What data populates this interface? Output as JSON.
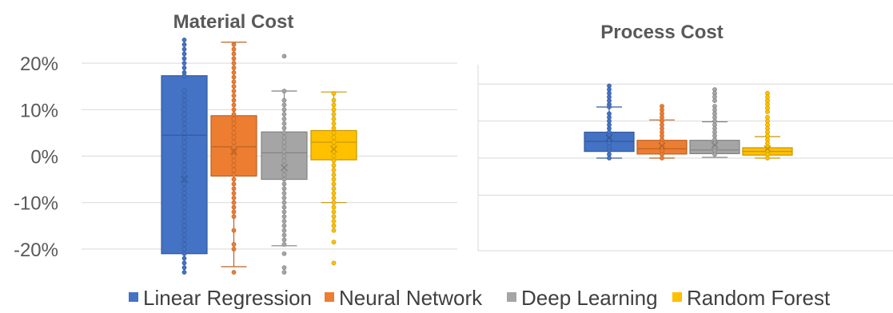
{
  "legend": {
    "placement": "bottom",
    "items": [
      {
        "label": "Linear Regression",
        "color": "#4472C4"
      },
      {
        "label": "Neural Network",
        "color": "#ED7D31"
      },
      {
        "label": "Deep Learning",
        "color": "#A5A5A5"
      },
      {
        "label": "Random Forest",
        "color": "#FFC000"
      }
    ]
  },
  "chart_data": [
    {
      "type": "box",
      "title": "Material Cost",
      "y_ticks": [
        "20%",
        "10%",
        "0%",
        "-10%",
        "-20%"
      ],
      "y_tick_values": [
        20,
        10,
        0,
        -10,
        -20
      ],
      "ylim": [
        -25,
        25
      ],
      "grid": true,
      "series": [
        {
          "name": "Linear Regression",
          "color": "#4472C4",
          "q1": -21,
          "median": 4.5,
          "q3": 17.3,
          "mean": -5,
          "whisker_low": -25,
          "whisker_high": 25,
          "points": [
            25,
            24,
            23,
            22,
            21,
            20,
            19,
            18,
            17.3,
            14,
            13,
            12,
            11,
            10,
            9,
            8,
            7,
            6,
            5,
            4,
            3,
            2,
            1,
            0,
            -1,
            -2,
            -3,
            -4,
            -6,
            -7,
            -8,
            -9,
            -10,
            -11,
            -12,
            -13,
            -14,
            -15,
            -16,
            -17,
            -18,
            -19,
            -20,
            -21,
            -22,
            -23,
            -24,
            -25
          ]
        },
        {
          "name": "Neural Network",
          "color": "#ED7D31",
          "q1": -4.3,
          "median": 2,
          "q3": 8.7,
          "mean": 1,
          "whisker_low": -23.8,
          "whisker_high": 24.5,
          "points": [
            24,
            23,
            22,
            21,
            20,
            19,
            18,
            17,
            16,
            15,
            14,
            13,
            12,
            11,
            10,
            9,
            8,
            7,
            6,
            5,
            4,
            3,
            2,
            1,
            0,
            -1,
            -2,
            -3,
            -4,
            -5,
            -6,
            -7,
            -8,
            -9,
            -10,
            -11,
            -12,
            -13,
            -16,
            -19,
            -20,
            -25
          ]
        },
        {
          "name": "Deep Learning",
          "color": "#A5A5A5",
          "q1": -5,
          "median": 0.7,
          "q3": 5.2,
          "mean": -2.5,
          "whisker_low": -19.3,
          "whisker_high": 14,
          "points": [
            21.5,
            14,
            12,
            11,
            10,
            9,
            8,
            7,
            6,
            5,
            4,
            3,
            2,
            1,
            0,
            -1,
            -2,
            -3,
            -4,
            -5,
            -6,
            -7,
            -8,
            -9,
            -10,
            -11,
            -12,
            -13,
            -14,
            -15,
            -16,
            -17,
            -18,
            -19,
            -21,
            -24,
            -25
          ]
        },
        {
          "name": "Random Forest",
          "color": "#FFC000",
          "q1": -0.8,
          "median": 3,
          "q3": 5.5,
          "mean": 1.5,
          "whisker_low": -10,
          "whisker_high": 13.8,
          "points": [
            13.5,
            12,
            11,
            10,
            9,
            8,
            7,
            6,
            5,
            4,
            3,
            2,
            1,
            0,
            -1,
            -2,
            -3,
            -4,
            -5,
            -6,
            -7,
            -8,
            -9,
            -10,
            -11,
            -12,
            -13,
            -14,
            -15,
            -16,
            -18.5,
            -23
          ]
        }
      ]
    },
    {
      "type": "box",
      "title": "Process Cost",
      "ylim": [
        -25,
        25
      ],
      "grid": true,
      "series": [
        {
          "name": "Linear Regression",
          "color": "#4472C4",
          "q1": 1.8,
          "median": 4.5,
          "q3": 7,
          "mean": 5.5,
          "whisker_low": 0,
          "whisker_high": 13.8,
          "points": [
            19.5,
            18.5,
            17.5,
            16.5,
            15.5,
            14.5,
            13.8,
            12,
            11,
            10,
            9,
            8,
            7,
            6,
            5,
            4,
            3,
            2,
            1,
            0
          ]
        },
        {
          "name": "Neural Network",
          "color": "#ED7D31",
          "q1": 1.1,
          "median": 2.5,
          "q3": 4.8,
          "mean": 3.3,
          "whisker_low": 0,
          "whisker_high": 10.3,
          "points": [
            14,
            13,
            12,
            11,
            10,
            9,
            8,
            7,
            6,
            5,
            4,
            3,
            2,
            1,
            0
          ]
        },
        {
          "name": "Deep Learning",
          "color": "#A5A5A5",
          "q1": 1.2,
          "median": 2.2,
          "q3": 4.8,
          "mean": 3.5,
          "whisker_low": 0.2,
          "whisker_high": 9.8,
          "points": [
            18.5,
            17.5,
            16.5,
            15.5,
            14,
            13,
            12,
            11,
            10,
            9,
            8,
            7,
            6,
            5,
            4,
            3,
            2,
            1
          ]
        },
        {
          "name": "Random Forest",
          "color": "#FFC000",
          "q1": 0.8,
          "median": 1.8,
          "q3": 2.8,
          "mean": 2.5,
          "whisker_low": 0,
          "whisker_high": 5.8,
          "points": [
            17.5,
            16.5,
            15.5,
            14.5,
            13.5,
            12.5,
            11,
            10,
            9,
            8,
            7,
            6,
            5,
            4,
            3,
            2,
            1,
            0
          ]
        }
      ]
    }
  ]
}
